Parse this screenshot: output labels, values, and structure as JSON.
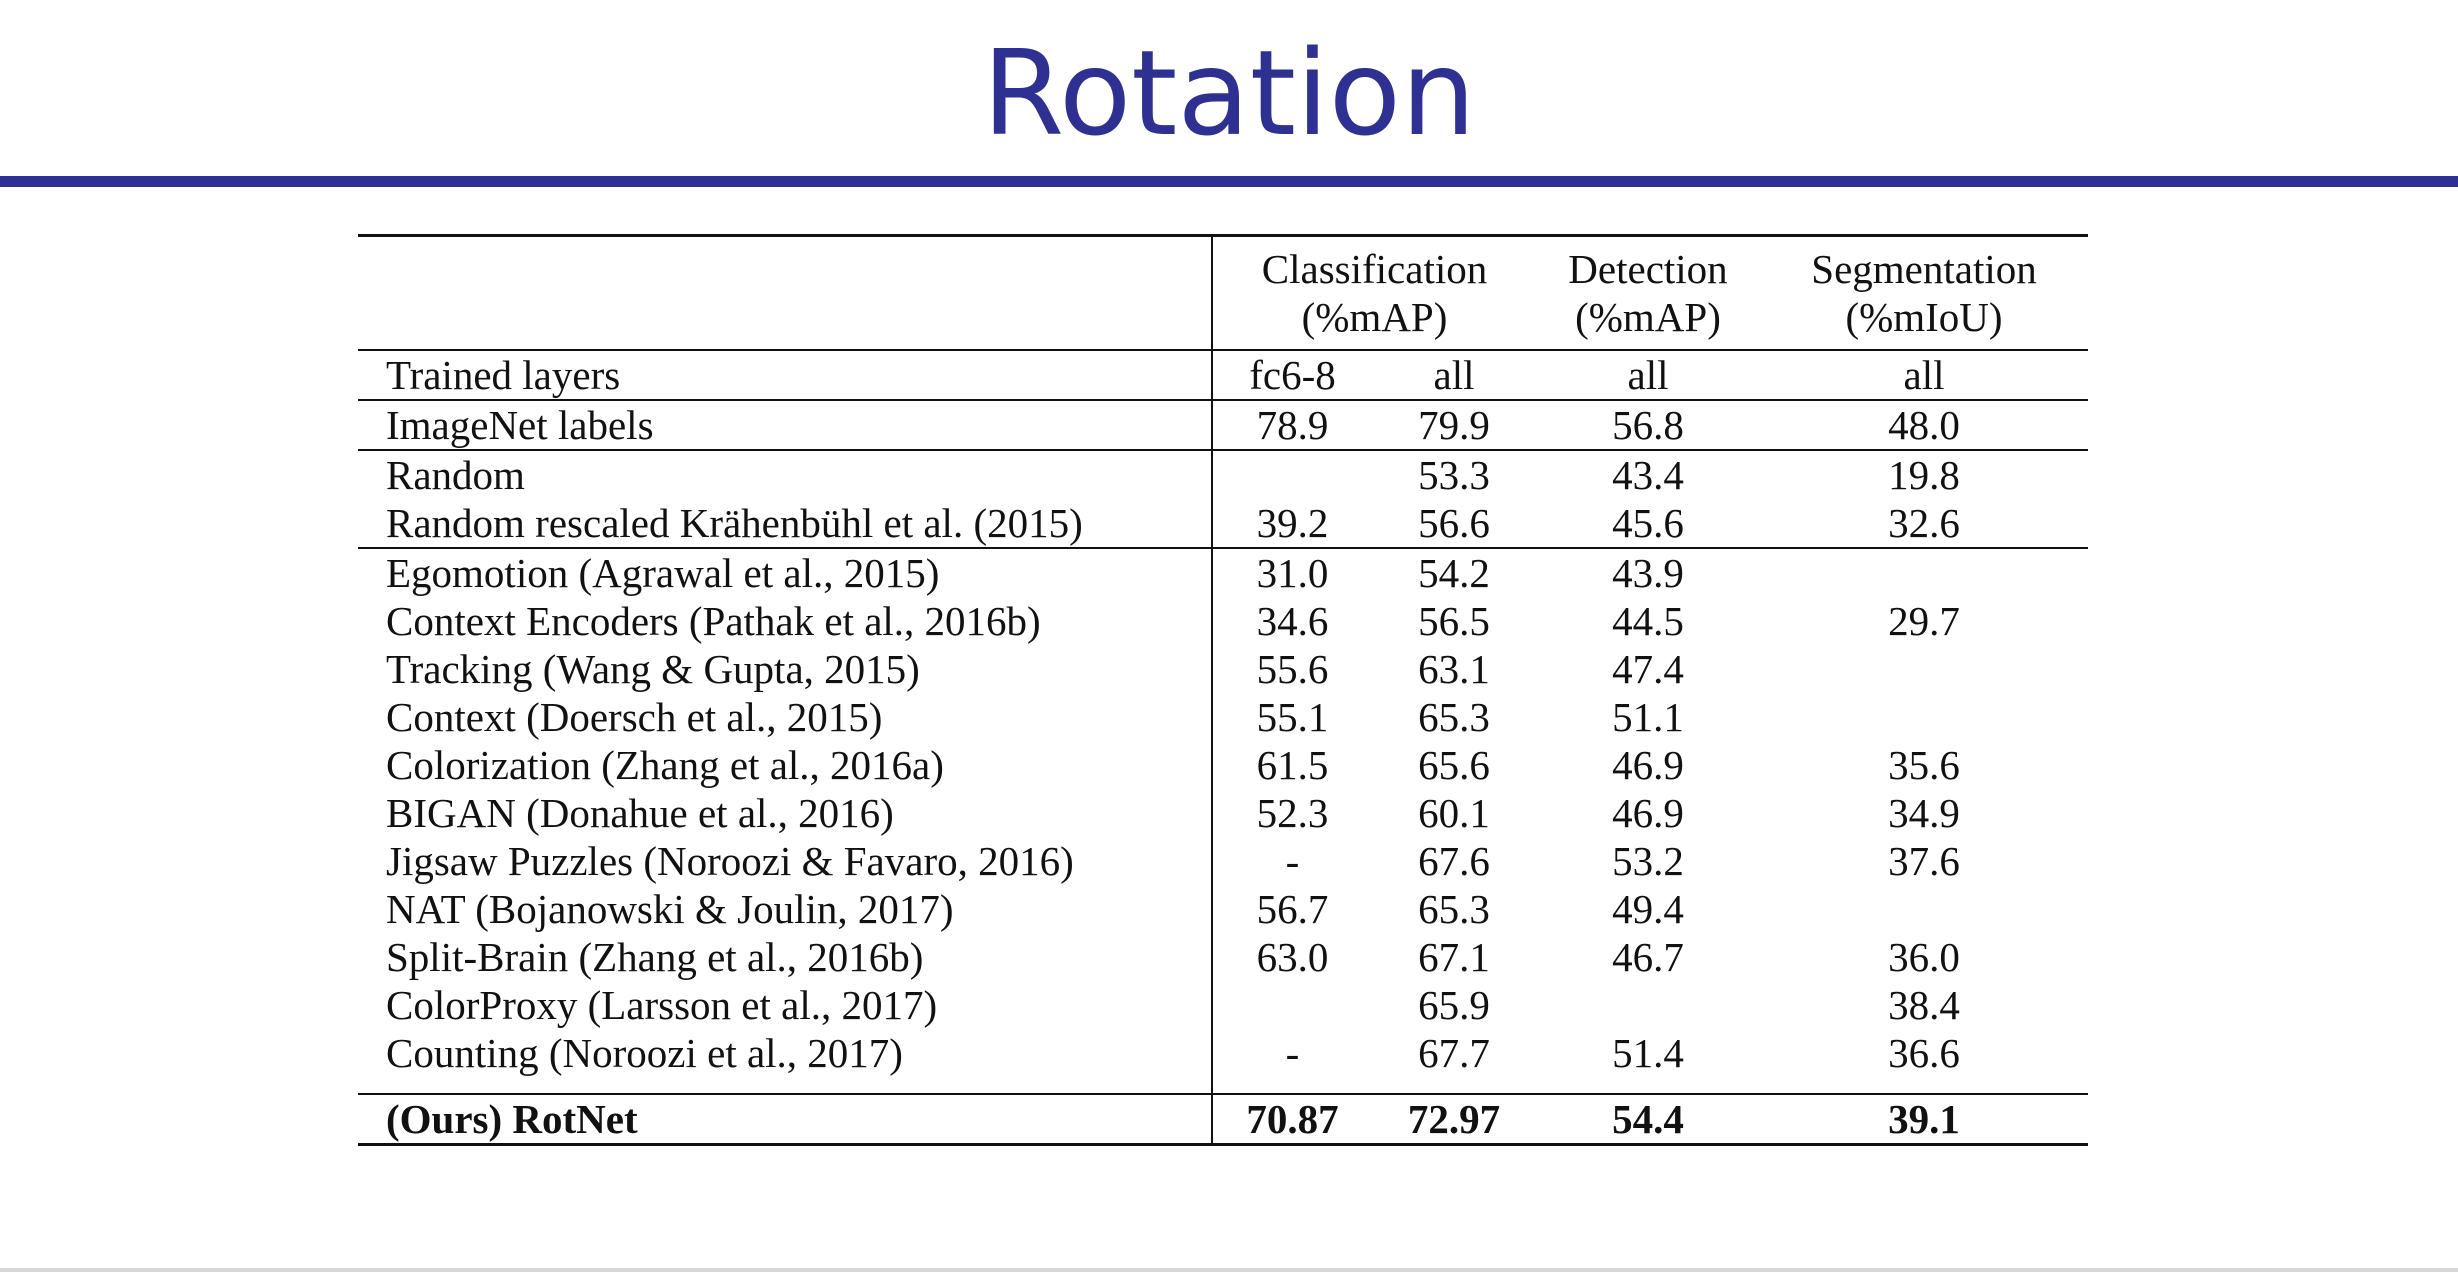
{
  "slide": {
    "title": "Rotation"
  },
  "table": {
    "header": {
      "classification": [
        "Classification",
        "(%mAP)"
      ],
      "detection": [
        "Detection",
        "(%mAP)"
      ],
      "segmentation": [
        "Segmentation",
        "(%mIoU)"
      ]
    },
    "trained_layers": {
      "label": "Trained layers",
      "values": [
        "fc6-8",
        "all",
        "all",
        "all"
      ]
    },
    "groups": [
      [
        {
          "name": "ImageNet labels",
          "values": [
            "78.9",
            "79.9",
            "56.8",
            "48.0"
          ]
        }
      ],
      [
        {
          "name": "Random",
          "values": [
            "",
            "53.3",
            "43.4",
            "19.8"
          ]
        },
        {
          "name": "Random rescaled Krähenbühl et al. (2015)",
          "values": [
            "39.2",
            "56.6",
            "45.6",
            "32.6"
          ]
        }
      ],
      [
        {
          "name": "Egomotion (Agrawal et al., 2015)",
          "values": [
            "31.0",
            "54.2",
            "43.9",
            ""
          ]
        },
        {
          "name": "Context Encoders (Pathak et al., 2016b)",
          "values": [
            "34.6",
            "56.5",
            "44.5",
            "29.7"
          ]
        },
        {
          "name": "Tracking (Wang & Gupta, 2015)",
          "values": [
            "55.6",
            "63.1",
            "47.4",
            ""
          ]
        },
        {
          "name": "Context (Doersch et al., 2015)",
          "values": [
            "55.1",
            "65.3",
            "51.1",
            ""
          ]
        },
        {
          "name": "Colorization (Zhang et al., 2016a)",
          "values": [
            "61.5",
            "65.6",
            "46.9",
            "35.6"
          ]
        },
        {
          "name": "BIGAN (Donahue et al., 2016)",
          "values": [
            "52.3",
            "60.1",
            "46.9",
            "34.9"
          ]
        },
        {
          "name": "Jigsaw Puzzles (Noroozi & Favaro, 2016)",
          "values": [
            "-",
            "67.6",
            "53.2",
            "37.6"
          ]
        },
        {
          "name": "NAT (Bojanowski & Joulin, 2017)",
          "values": [
            "56.7",
            "65.3",
            "49.4",
            ""
          ]
        },
        {
          "name": "Split-Brain (Zhang et al., 2016b)",
          "values": [
            "63.0",
            "67.1",
            "46.7",
            "36.0"
          ]
        },
        {
          "name": "ColorProxy (Larsson et al., 2017)",
          "values": [
            "",
            "65.9",
            "",
            "38.4"
          ]
        },
        {
          "name": "Counting (Noroozi et al., 2017)",
          "values": [
            "-",
            "67.7",
            "51.4",
            "36.6"
          ]
        }
      ]
    ],
    "ours": {
      "name": "(Ours) RotNet",
      "values": [
        "70.87",
        "72.97",
        "54.4",
        "39.1"
      ]
    }
  }
}
